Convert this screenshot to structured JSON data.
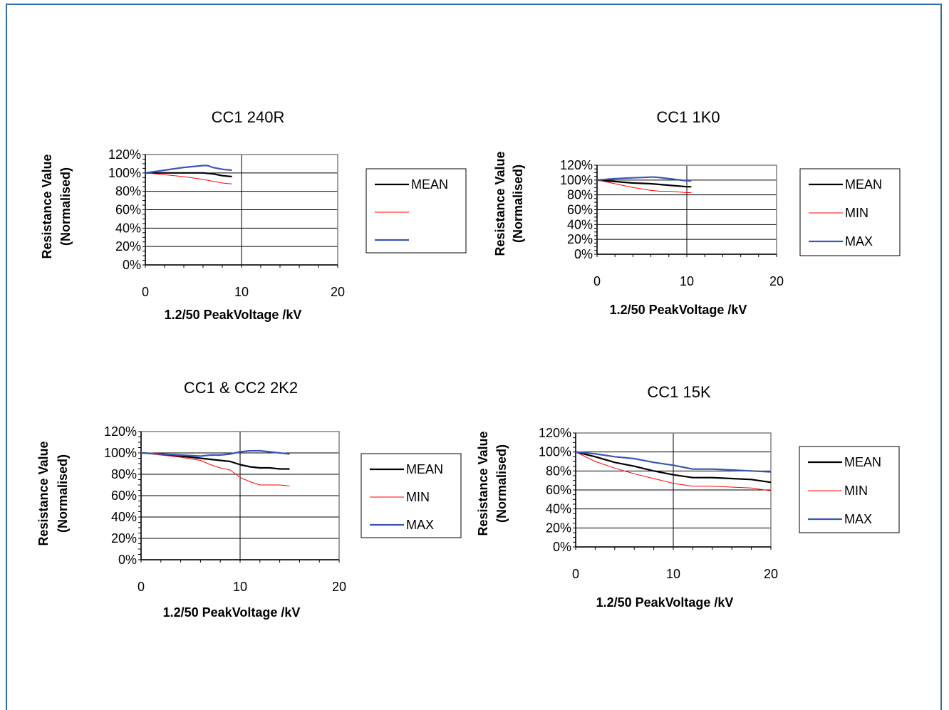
{
  "chart_data": [
    {
      "type": "line",
      "title": "CC1 240R",
      "xlabel": "1.2/50 PeakVoltage /kV",
      "ylabel": [
        "Resistance Value",
        "(Normalised)"
      ],
      "xlim": [
        0,
        20
      ],
      "ylim": [
        0,
        1.2
      ],
      "xticks": [
        "0",
        "10",
        "20"
      ],
      "yticks": [
        "0%",
        "20%",
        "40%",
        "60%",
        "80%",
        "100%",
        "120%"
      ],
      "grid": true,
      "legend": "right",
      "series": [
        {
          "name": "MEAN",
          "color": "#000000",
          "x": [
            0,
            2,
            4,
            6,
            7,
            8,
            9
          ],
          "y": [
            1.0,
            1.0,
            1.0,
            1.0,
            0.99,
            0.97,
            0.96
          ]
        },
        {
          "name": "",
          "color": "#ff0000",
          "x": [
            0,
            2,
            4,
            6,
            7,
            8,
            9
          ],
          "y": [
            1.0,
            0.98,
            0.96,
            0.93,
            0.91,
            0.89,
            0.88
          ]
        },
        {
          "name": "",
          "color": "#3a56b0",
          "x": [
            0,
            2,
            4,
            6,
            6.5,
            7,
            8,
            9
          ],
          "y": [
            1.0,
            1.03,
            1.06,
            1.08,
            1.08,
            1.06,
            1.04,
            1.03
          ]
        }
      ]
    },
    {
      "type": "line",
      "title": "CC1 1K0",
      "xlabel": "1.2/50 PeakVoltage /kV",
      "ylabel": [
        "Resistance Value",
        "(Normalised)"
      ],
      "xlim": [
        0,
        20
      ],
      "ylim": [
        0,
        1.2
      ],
      "xticks": [
        "0",
        "10",
        "20"
      ],
      "yticks": [
        "0%",
        "20%",
        "40%",
        "60%",
        "80%",
        "100%",
        "120%"
      ],
      "grid": true,
      "legend": "right",
      "series": [
        {
          "name": "MEAN",
          "color": "#000000",
          "x": [
            0,
            2,
            4,
            6,
            8,
            10,
            10.5
          ],
          "y": [
            1.0,
            0.98,
            0.96,
            0.95,
            0.93,
            0.91,
            0.91
          ]
        },
        {
          "name": "MIN",
          "color": "#ff0000",
          "x": [
            0,
            2,
            4,
            6,
            7,
            8,
            9,
            10,
            10.5
          ],
          "y": [
            1.0,
            0.95,
            0.9,
            0.86,
            0.85,
            0.85,
            0.84,
            0.83,
            0.83
          ]
        },
        {
          "name": "MAX",
          "color": "#3a56b0",
          "x": [
            0,
            2,
            4,
            6,
            6.5,
            8,
            10,
            10.5
          ],
          "y": [
            1.0,
            1.02,
            1.03,
            1.04,
            1.04,
            1.02,
            0.99,
            0.99
          ]
        }
      ]
    },
    {
      "type": "line",
      "title": "CC1 & CC2   2K2",
      "xlabel": "1.2/50 PeakVoltage /kV",
      "ylabel": [
        "Resistance Value",
        "(Normalised)"
      ],
      "xlim": [
        0,
        20
      ],
      "ylim": [
        0,
        1.2
      ],
      "xticks": [
        "0",
        "10",
        "20"
      ],
      "yticks": [
        "0%",
        "20%",
        "40%",
        "60%",
        "80%",
        "100%",
        "120%"
      ],
      "grid": true,
      "legend": "right",
      "series": [
        {
          "name": "MEAN",
          "color": "#000000",
          "x": [
            0,
            2,
            4,
            6,
            8,
            9,
            10,
            11,
            12,
            13,
            14,
            15
          ],
          "y": [
            1.0,
            0.99,
            0.97,
            0.95,
            0.93,
            0.92,
            0.89,
            0.87,
            0.86,
            0.86,
            0.85,
            0.85
          ]
        },
        {
          "name": "MIN",
          "color": "#ff0000",
          "x": [
            0,
            2,
            4,
            6,
            7,
            8,
            9,
            10,
            11,
            12,
            13,
            14,
            15
          ],
          "y": [
            1.0,
            0.98,
            0.96,
            0.93,
            0.89,
            0.86,
            0.84,
            0.77,
            0.73,
            0.7,
            0.7,
            0.7,
            0.69
          ]
        },
        {
          "name": "MAX",
          "color": "#3a56b0",
          "x": [
            0,
            2,
            4,
            6,
            7,
            8,
            9,
            10,
            11,
            12,
            13,
            14,
            15
          ],
          "y": [
            1.0,
            0.99,
            0.98,
            0.97,
            0.98,
            0.98,
            0.99,
            1.01,
            1.02,
            1.02,
            1.01,
            1.0,
            0.99
          ]
        }
      ]
    },
    {
      "type": "line",
      "title": "CC1   15K",
      "xlabel": "1.2/50 PeakVoltage /kV",
      "ylabel": [
        "Resistance Value",
        "(Normalised)"
      ],
      "xlim": [
        0,
        20
      ],
      "ylim": [
        0,
        1.2
      ],
      "xticks": [
        "0",
        "10",
        "20"
      ],
      "yticks": [
        "0%",
        "20%",
        "40%",
        "60%",
        "80%",
        "100%",
        "120%"
      ],
      "grid": true,
      "legend": "right",
      "series": [
        {
          "name": "MEAN",
          "color": "#000000",
          "x": [
            0,
            2,
            4,
            6,
            8,
            10,
            12,
            14,
            16,
            18,
            20
          ],
          "y": [
            1.0,
            0.95,
            0.89,
            0.85,
            0.8,
            0.76,
            0.73,
            0.73,
            0.72,
            0.71,
            0.68
          ]
        },
        {
          "name": "MIN",
          "color": "#ff0000",
          "x": [
            0,
            2,
            4,
            6,
            8,
            10,
            12,
            14,
            16,
            18,
            20
          ],
          "y": [
            1.0,
            0.9,
            0.83,
            0.77,
            0.72,
            0.67,
            0.64,
            0.64,
            0.63,
            0.62,
            0.59
          ]
        },
        {
          "name": "MAX",
          "color": "#3a56b0",
          "x": [
            0,
            2,
            4,
            6,
            8,
            10,
            12,
            14,
            16,
            18,
            20
          ],
          "y": [
            1.0,
            0.98,
            0.95,
            0.93,
            0.89,
            0.86,
            0.82,
            0.82,
            0.81,
            0.8,
            0.79
          ]
        }
      ]
    }
  ]
}
